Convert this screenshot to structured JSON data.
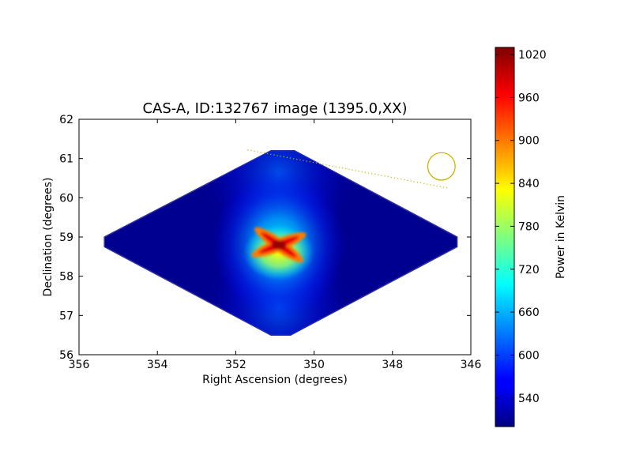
{
  "chart_data": {
    "type": "heatmap",
    "title": "CAS-A, ID:132767 image (1395.0,XX)",
    "xlabel": "Right Ascension (degrees)",
    "ylabel": "Declination (degrees)",
    "xlim": [
      356,
      346
    ],
    "ylim": [
      56,
      62
    ],
    "x_ticks": [
      "356",
      "354",
      "352",
      "350",
      "348",
      "346"
    ],
    "y_ticks": [
      "56",
      "57",
      "58",
      "59",
      "60",
      "61",
      "62"
    ],
    "grid": false,
    "colormap": "jet",
    "colorbar": {
      "label": "Power in Kelvin",
      "range": [
        500,
        1030
      ],
      "ticks": [
        "540",
        "600",
        "660",
        "720",
        "780",
        "840",
        "900",
        "960",
        "1020"
      ]
    },
    "field_of_view_polygon": [
      [
        355.35,
        59.0
      ],
      [
        355.35,
        58.75
      ],
      [
        351.1,
        56.5
      ],
      [
        350.6,
        56.5
      ],
      [
        346.35,
        58.75
      ],
      [
        346.35,
        59.0
      ],
      [
        350.5,
        61.2
      ],
      [
        351.1,
        61.2
      ]
    ],
    "source_center": [
      350.9,
      58.8
    ],
    "peak_value": 1030,
    "background_value": 505,
    "beam_circle": {
      "center": [
        346.75,
        60.8
      ],
      "radius_deg_ra": 0.35,
      "color": "#c8b400"
    },
    "dotted_line": {
      "from": [
        351.7,
        61.22
      ],
      "to": [
        346.6,
        60.25
      ],
      "color": "#c8b400"
    }
  }
}
